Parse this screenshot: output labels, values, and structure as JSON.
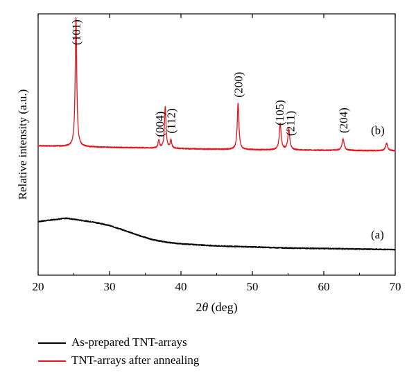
{
  "chart_data": {
    "type": "line",
    "xlabel_prefix": "2",
    "xlabel_symbol": "θ",
    "xlabel_suffix": " (deg)",
    "ylabel": "Relative intensity (a.u.)",
    "xlim": [
      20,
      70
    ],
    "ylim": [
      0,
      100
    ],
    "x_ticks": [
      20,
      30,
      40,
      50,
      60,
      70
    ],
    "x_tick_labels": [
      "20",
      "30",
      "40",
      "50",
      "60",
      "70"
    ],
    "grid": false,
    "legend_position": "bottom-left, below plot",
    "series": [
      {
        "name": "As-prepared TNT-arrays",
        "color": "#000000",
        "baseline_points": [
          [
            20,
            20.5
          ],
          [
            22,
            21.2
          ],
          [
            24,
            21.8
          ],
          [
            26,
            21.0
          ],
          [
            28,
            20.2
          ],
          [
            30,
            19.0
          ],
          [
            32,
            17.2
          ],
          [
            34,
            15.3
          ],
          [
            36,
            13.6
          ],
          [
            38,
            12.6
          ],
          [
            40,
            12.0
          ],
          [
            45,
            11.2
          ],
          [
            50,
            10.8
          ],
          [
            55,
            10.4
          ],
          [
            60,
            10.2
          ],
          [
            65,
            10.0
          ],
          [
            70,
            9.8
          ]
        ],
        "peaks": []
      },
      {
        "name": "TNT-arrays after annealing",
        "color": "#e8131b",
        "baseline_points": [
          [
            20,
            49.5
          ],
          [
            25,
            49.2
          ],
          [
            30,
            48.9
          ],
          [
            35,
            48.7
          ],
          [
            40,
            48.4
          ],
          [
            45,
            48.2
          ],
          [
            50,
            48.0
          ],
          [
            55,
            47.9
          ],
          [
            60,
            47.8
          ],
          [
            65,
            47.7
          ],
          [
            70,
            47.6
          ]
        ],
        "peaks": [
          {
            "x": 25.3,
            "height": 49.3,
            "width": 0.13
          },
          {
            "x": 36.9,
            "height": 3.0,
            "width": 0.12
          },
          {
            "x": 37.8,
            "height": 16.0,
            "width": 0.13
          },
          {
            "x": 38.6,
            "height": 3.2,
            "width": 0.12
          },
          {
            "x": 48.0,
            "height": 17.8,
            "width": 0.14
          },
          {
            "x": 53.9,
            "height": 9.9,
            "width": 0.16
          },
          {
            "x": 55.1,
            "height": 8.1,
            "width": 0.16
          },
          {
            "x": 62.7,
            "height": 4.5,
            "width": 0.18
          },
          {
            "x": 68.8,
            "height": 2.8,
            "width": 0.18
          }
        ]
      }
    ],
    "peak_labels": [
      {
        "text": "(101)",
        "x": 25.3
      },
      {
        "text": "(004)",
        "x": 37.0
      },
      {
        "text": "(112)",
        "x": 38.6
      },
      {
        "text": "(200)",
        "x": 48.0
      },
      {
        "text": "(105)",
        "x": 53.8
      },
      {
        "text": "(211)",
        "x": 55.3
      },
      {
        "text": "(204)",
        "x": 62.7
      }
    ],
    "curve_labels": [
      {
        "text": "(b)",
        "series": 1
      },
      {
        "text": "(a)",
        "series": 0
      }
    ]
  }
}
